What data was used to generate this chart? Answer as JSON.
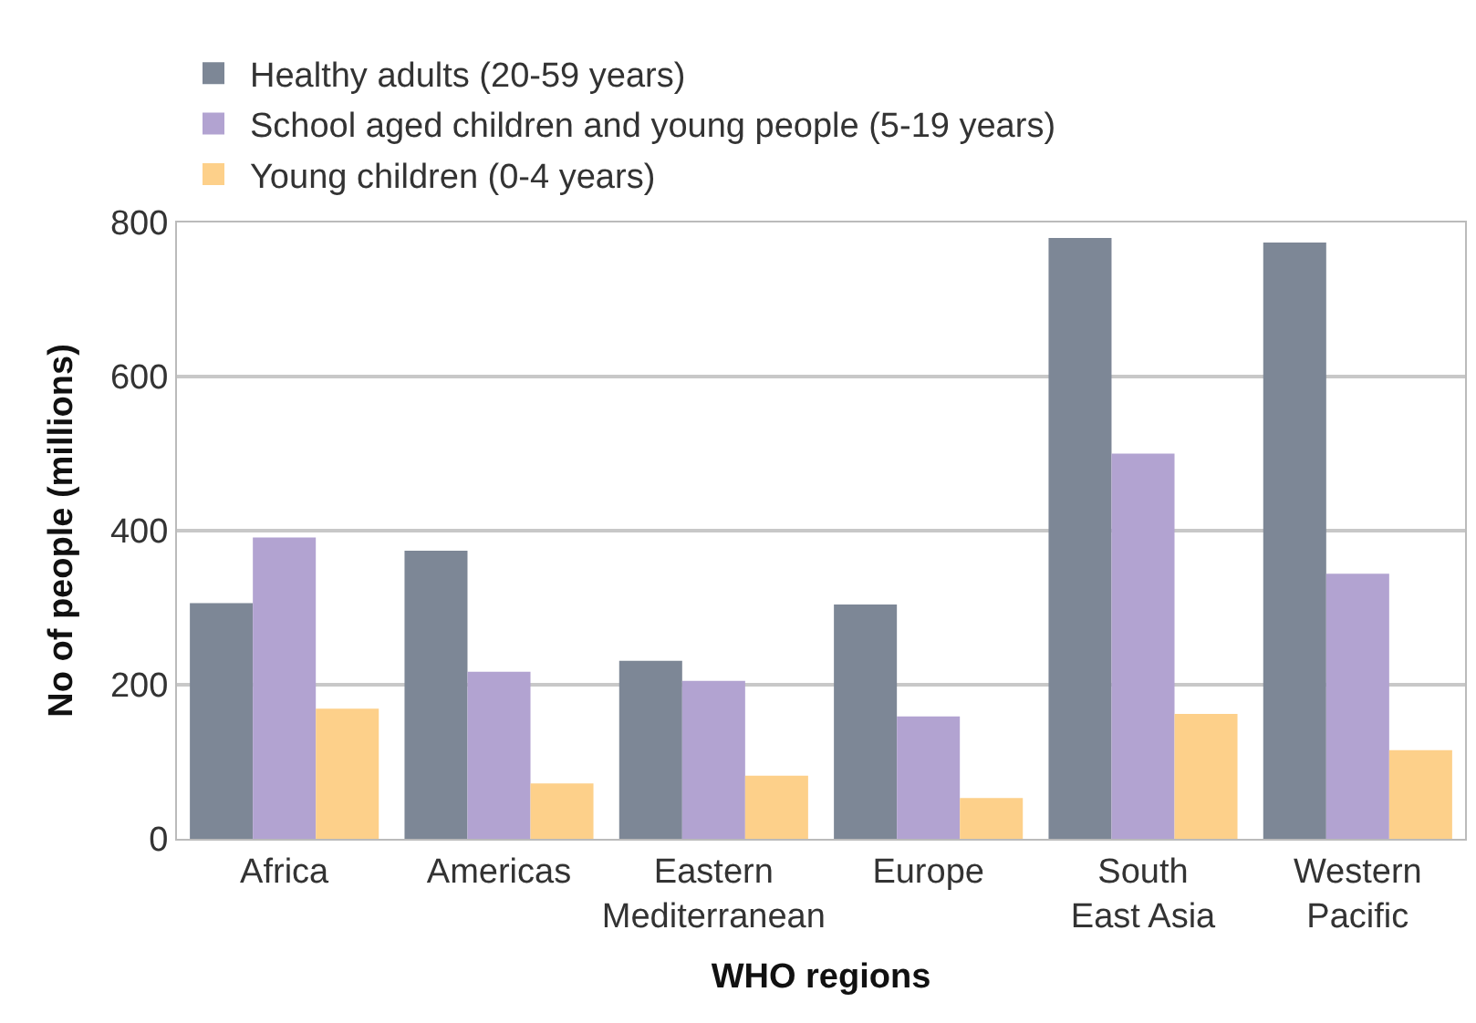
{
  "chart_data": {
    "type": "bar",
    "xlabel": "WHO regions",
    "ylabel": "No of people (millions)",
    "categories": [
      "Africa",
      "Americas",
      "Eastern\nMediterranean",
      "Europe",
      "South\nEast Asia",
      "Western\nPacific"
    ],
    "series": [
      {
        "name": "Healthy adults (20-59 years)",
        "color": "#7d8796",
        "values": [
          306,
          374,
          231,
          304,
          780,
          774
        ]
      },
      {
        "name": "School aged children and young people (5-19 years)",
        "color": "#b2a3d1",
        "values": [
          391,
          217,
          205,
          159,
          500,
          344
        ]
      },
      {
        "name": "Young children (0-4 years)",
        "color": "#fdd08a",
        "values": [
          169,
          72,
          82,
          53,
          162,
          115
        ]
      }
    ],
    "ylim": [
      0,
      800
    ],
    "yticks": [
      0,
      200,
      400,
      600,
      800
    ],
    "grid": "y",
    "legend": "top left"
  }
}
